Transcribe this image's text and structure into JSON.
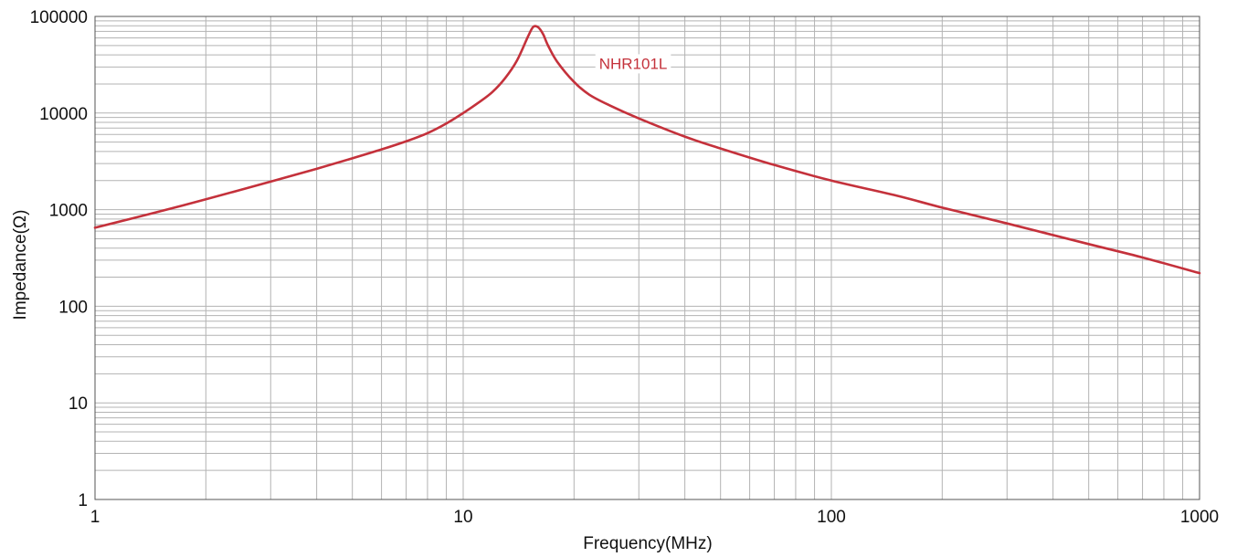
{
  "chart_data": {
    "type": "line",
    "title": "",
    "xlabel": "Frequency(MHz)",
    "ylabel": "Impedance(Ω)",
    "x_scale": "log",
    "y_scale": "log",
    "xlim": [
      1,
      1000
    ],
    "ylim": [
      1,
      100000
    ],
    "x_ticks": [
      1,
      10,
      100,
      1000
    ],
    "x_tick_labels": [
      "1",
      "10",
      "100",
      "1000"
    ],
    "y_ticks": [
      1,
      10,
      100,
      1000,
      10000,
      100000
    ],
    "y_tick_labels": [
      "1",
      "10",
      "100",
      "1000",
      "10000",
      "100000"
    ],
    "grid": true,
    "colors": {
      "series": "#c4313b",
      "grid": "#b3b3b3",
      "frame": "#555555"
    },
    "series": [
      {
        "name": "NHR101L",
        "x": [
          1,
          1.5,
          2,
          3,
          4,
          5,
          6,
          7,
          8,
          9,
          10,
          11,
          12,
          13,
          14,
          15,
          15.5,
          16,
          16.5,
          17,
          18,
          20,
          22,
          25,
          30,
          40,
          50,
          70,
          100,
          150,
          200,
          300,
          500,
          700,
          1000
        ],
        "y": [
          650,
          960,
          1280,
          1950,
          2650,
          3400,
          4200,
          5100,
          6200,
          7800,
          10000,
          12800,
          16500,
          23000,
          35000,
          62000,
          78000,
          77000,
          65000,
          50000,
          34000,
          21000,
          15500,
          12000,
          8800,
          5700,
          4300,
          2900,
          2000,
          1400,
          1050,
          720,
          440,
          320,
          220
        ]
      }
    ]
  }
}
